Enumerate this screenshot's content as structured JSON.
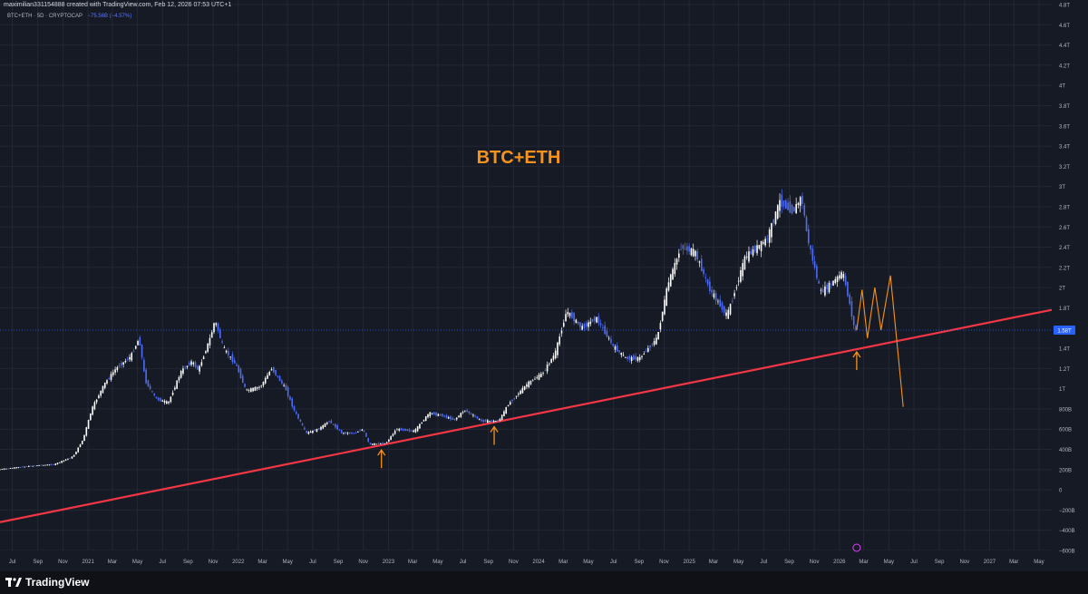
{
  "header": {
    "watermark_text": "maximilian331154888 created with TradingView.com, Feb 12, 2026 07:53 UTC+1"
  },
  "symbol": {
    "label": "BTC+ETH · 5D · CRYPTOCAP",
    "change": "−75.56B (−4.57%)"
  },
  "brand": {
    "name": "TradingView"
  },
  "colors": {
    "background": "#161a25",
    "candle": "#4f6cf5",
    "candle_alt": "#ffffff",
    "trendline": "#f23645",
    "annotation": "#f7931a",
    "price_tag": "#2962ff"
  },
  "chart_data": {
    "type": "line",
    "title": "BTC+ETH",
    "xlabel": "",
    "ylabel": "",
    "y_unit": "USD market cap",
    "ylim": [
      -600000000000,
      4800000000000
    ],
    "y_ticks": [
      {
        "value": 4800000000000,
        "label": "4.8T"
      },
      {
        "value": 4600000000000,
        "label": "4.6T"
      },
      {
        "value": 4400000000000,
        "label": "4.4T"
      },
      {
        "value": 4200000000000,
        "label": "4.2T"
      },
      {
        "value": 4000000000000,
        "label": "4T"
      },
      {
        "value": 3800000000000,
        "label": "3.8T"
      },
      {
        "value": 3600000000000,
        "label": "3.6T"
      },
      {
        "value": 3400000000000,
        "label": "3.4T"
      },
      {
        "value": 3200000000000,
        "label": "3.2T"
      },
      {
        "value": 3000000000000,
        "label": "3T"
      },
      {
        "value": 2800000000000,
        "label": "2.8T"
      },
      {
        "value": 2600000000000,
        "label": "2.6T"
      },
      {
        "value": 2400000000000,
        "label": "2.4T"
      },
      {
        "value": 2200000000000,
        "label": "2.2T"
      },
      {
        "value": 2000000000000,
        "label": "2T"
      },
      {
        "value": 1800000000000,
        "label": "1.8T"
      },
      {
        "value": 1400000000000,
        "label": "1.4T"
      },
      {
        "value": 1200000000000,
        "label": "1.2T"
      },
      {
        "value": 1000000000000,
        "label": "1T"
      },
      {
        "value": 800000000000,
        "label": "800B"
      },
      {
        "value": 600000000000,
        "label": "600B"
      },
      {
        "value": 400000000000,
        "label": "400B"
      },
      {
        "value": 200000000000,
        "label": "200B"
      },
      {
        "value": 0,
        "label": "0"
      },
      {
        "value": -200000000000,
        "label": "−200B"
      },
      {
        "value": -400000000000,
        "label": "−400B"
      },
      {
        "value": -600000000000,
        "label": "−600B"
      }
    ],
    "x_range": [
      "2020-06-01",
      "2027-06-01"
    ],
    "x_ticks": [
      {
        "date": "2020-07-01",
        "label": "Jul"
      },
      {
        "date": "2020-09-01",
        "label": "Sep"
      },
      {
        "date": "2020-11-01",
        "label": "Nov"
      },
      {
        "date": "2021-01-01",
        "label": "2021"
      },
      {
        "date": "2021-03-01",
        "label": "Mar"
      },
      {
        "date": "2021-05-01",
        "label": "May"
      },
      {
        "date": "2021-07-01",
        "label": "Jul"
      },
      {
        "date": "2021-09-01",
        "label": "Sep"
      },
      {
        "date": "2021-11-01",
        "label": "Nov"
      },
      {
        "date": "2022-01-01",
        "label": "2022"
      },
      {
        "date": "2022-03-01",
        "label": "Mar"
      },
      {
        "date": "2022-05-01",
        "label": "May"
      },
      {
        "date": "2022-07-01",
        "label": "Jul"
      },
      {
        "date": "2022-09-01",
        "label": "Sep"
      },
      {
        "date": "2022-11-01",
        "label": "Nov"
      },
      {
        "date": "2023-01-01",
        "label": "2023"
      },
      {
        "date": "2023-03-01",
        "label": "Mar"
      },
      {
        "date": "2023-05-01",
        "label": "May"
      },
      {
        "date": "2023-07-01",
        "label": "Jul"
      },
      {
        "date": "2023-09-01",
        "label": "Sep"
      },
      {
        "date": "2023-11-01",
        "label": "Nov"
      },
      {
        "date": "2024-01-01",
        "label": "2024"
      },
      {
        "date": "2024-03-01",
        "label": "Mar"
      },
      {
        "date": "2024-05-01",
        "label": "May"
      },
      {
        "date": "2024-07-01",
        "label": "Jul"
      },
      {
        "date": "2024-09-01",
        "label": "Sep"
      },
      {
        "date": "2024-11-01",
        "label": "Nov"
      },
      {
        "date": "2025-01-01",
        "label": "2025"
      },
      {
        "date": "2025-03-01",
        "label": "Mar"
      },
      {
        "date": "2025-05-01",
        "label": "May"
      },
      {
        "date": "2025-07-01",
        "label": "Jul"
      },
      {
        "date": "2025-09-01",
        "label": "Sep"
      },
      {
        "date": "2025-11-01",
        "label": "Nov"
      },
      {
        "date": "2026-01-01",
        "label": "2026"
      },
      {
        "date": "2026-03-01",
        "label": "Mar"
      },
      {
        "date": "2026-05-01",
        "label": "May"
      },
      {
        "date": "2026-07-01",
        "label": "Jul"
      },
      {
        "date": "2026-09-01",
        "label": "Sep"
      },
      {
        "date": "2026-11-01",
        "label": "Nov"
      },
      {
        "date": "2027-01-01",
        "label": "2027"
      },
      {
        "date": "2027-03-01",
        "label": "Mar"
      },
      {
        "date": "2027-05-01",
        "label": "May"
      }
    ],
    "series": [
      {
        "values": [
          {
            "x": "2020-06-01",
            "y": 200000000000
          },
          {
            "x": "2020-07-15",
            "y": 220000000000
          },
          {
            "x": "2020-09-01",
            "y": 240000000000
          },
          {
            "x": "2020-10-15",
            "y": 250000000000
          },
          {
            "x": "2020-12-01",
            "y": 330000000000
          },
          {
            "x": "2020-12-25",
            "y": 500000000000
          },
          {
            "x": "2021-01-15",
            "y": 800000000000
          },
          {
            "x": "2021-02-15",
            "y": 1050000000000
          },
          {
            "x": "2021-03-15",
            "y": 1200000000000
          },
          {
            "x": "2021-04-20",
            "y": 1320000000000
          },
          {
            "x": "2021-05-10",
            "y": 1500000000000
          },
          {
            "x": "2021-05-25",
            "y": 1080000000000
          },
          {
            "x": "2021-06-20",
            "y": 900000000000
          },
          {
            "x": "2021-07-20",
            "y": 860000000000
          },
          {
            "x": "2021-08-20",
            "y": 1170000000000
          },
          {
            "x": "2021-09-15",
            "y": 1270000000000
          },
          {
            "x": "2021-10-01",
            "y": 1180000000000
          },
          {
            "x": "2021-11-01",
            "y": 1530000000000
          },
          {
            "x": "2021-11-10",
            "y": 1680000000000
          },
          {
            "x": "2021-12-01",
            "y": 1400000000000
          },
          {
            "x": "2022-01-01",
            "y": 1230000000000
          },
          {
            "x": "2022-01-25",
            "y": 980000000000
          },
          {
            "x": "2022-03-01",
            "y": 1020000000000
          },
          {
            "x": "2022-03-28",
            "y": 1200000000000
          },
          {
            "x": "2022-05-01",
            "y": 1000000000000
          },
          {
            "x": "2022-05-20",
            "y": 800000000000
          },
          {
            "x": "2022-06-20",
            "y": 560000000000
          },
          {
            "x": "2022-07-20",
            "y": 600000000000
          },
          {
            "x": "2022-08-15",
            "y": 680000000000
          },
          {
            "x": "2022-09-15",
            "y": 560000000000
          },
          {
            "x": "2022-10-15",
            "y": 560000000000
          },
          {
            "x": "2022-11-05",
            "y": 600000000000
          },
          {
            "x": "2022-11-20",
            "y": 450000000000
          },
          {
            "x": "2022-12-31",
            "y": 460000000000
          },
          {
            "x": "2023-01-25",
            "y": 600000000000
          },
          {
            "x": "2023-03-10",
            "y": 580000000000
          },
          {
            "x": "2023-04-15",
            "y": 760000000000
          },
          {
            "x": "2023-05-20",
            "y": 730000000000
          },
          {
            "x": "2023-06-15",
            "y": 690000000000
          },
          {
            "x": "2023-07-10",
            "y": 790000000000
          },
          {
            "x": "2023-08-20",
            "y": 680000000000
          },
          {
            "x": "2023-10-01",
            "y": 680000000000
          },
          {
            "x": "2023-10-25",
            "y": 850000000000
          },
          {
            "x": "2023-12-10",
            "y": 1050000000000
          },
          {
            "x": "2024-01-15",
            "y": 1150000000000
          },
          {
            "x": "2024-02-15",
            "y": 1350000000000
          },
          {
            "x": "2024-03-14",
            "y": 1770000000000
          },
          {
            "x": "2024-04-20",
            "y": 1600000000000
          },
          {
            "x": "2024-05-25",
            "y": 1700000000000
          },
          {
            "x": "2024-07-05",
            "y": 1420000000000
          },
          {
            "x": "2024-08-05",
            "y": 1300000000000
          },
          {
            "x": "2024-09-07",
            "y": 1300000000000
          },
          {
            "x": "2024-10-20",
            "y": 1500000000000
          },
          {
            "x": "2024-11-15",
            "y": 2030000000000
          },
          {
            "x": "2024-12-17",
            "y": 2400000000000
          },
          {
            "x": "2025-01-20",
            "y": 2350000000000
          },
          {
            "x": "2025-02-25",
            "y": 1980000000000
          },
          {
            "x": "2025-04-08",
            "y": 1720000000000
          },
          {
            "x": "2025-05-22",
            "y": 2300000000000
          },
          {
            "x": "2025-07-14",
            "y": 2480000000000
          },
          {
            "x": "2025-08-14",
            "y": 2850000000000
          },
          {
            "x": "2025-09-15",
            "y": 2750000000000
          },
          {
            "x": "2025-10-06",
            "y": 2900000000000
          },
          {
            "x": "2025-10-20",
            "y": 2500000000000
          },
          {
            "x": "2025-11-21",
            "y": 1950000000000
          },
          {
            "x": "2025-12-20",
            "y": 2050000000000
          },
          {
            "x": "2026-01-14",
            "y": 2150000000000
          },
          {
            "x": "2026-01-28",
            "y": 1900000000000
          },
          {
            "x": "2026-02-12",
            "y": 1580000000000
          }
        ]
      }
    ],
    "last_price_label": "1.58T",
    "last_price": 1580000000000,
    "trendline": {
      "from": {
        "x": "2020-06-01",
        "y": -320000000000
      },
      "to": {
        "x": "2027-06-01",
        "y": 1780000000000
      }
    },
    "projection_path": [
      {
        "x": "2026-02-12",
        "y": 1580000000000
      },
      {
        "x": "2026-02-25",
        "y": 1980000000000
      },
      {
        "x": "2026-03-10",
        "y": 1500000000000
      },
      {
        "x": "2026-03-28",
        "y": 2000000000000
      },
      {
        "x": "2026-04-12",
        "y": 1580000000000
      },
      {
        "x": "2026-05-05",
        "y": 2120000000000
      },
      {
        "x": "2026-06-05",
        "y": 820000000000
      }
    ],
    "support_arrows": [
      {
        "x": "2022-12-15",
        "y": 430000000000
      },
      {
        "x": "2023-09-15",
        "y": 660000000000
      },
      {
        "x": "2026-02-12",
        "y": 1400000000000
      }
    ]
  }
}
